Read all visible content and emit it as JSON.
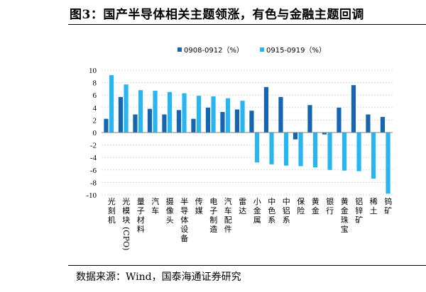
{
  "figure": {
    "title": "图3：国产半导体相关主题领涨，有色与金融主题回调",
    "source": "数据来源：Wind，国泰海通证券研究"
  },
  "chart_data": {
    "type": "bar",
    "title": "",
    "xlabel": "",
    "ylabel": "",
    "ylim": [
      -10,
      10
    ],
    "yticks": [
      -10,
      -8,
      -6,
      -4,
      -2,
      0,
      2,
      4,
      6,
      8,
      10
    ],
    "grid": true,
    "legend_position": "top",
    "categories": [
      "光刻机",
      "光模块(CPO)",
      "量子材料",
      "汽车",
      "摄像头",
      "半导体设备",
      "传媒",
      "电子制造",
      "汽车配件",
      "雷达",
      "小金属",
      "中色系",
      "中铝系",
      "保险",
      "黄金",
      "银行",
      "黄金珠宝",
      "铝锌矿",
      "稀土",
      "钨矿"
    ],
    "series": [
      {
        "name": "0908-0912（%）",
        "color": "#1565b0",
        "values": [
          2.2,
          5.7,
          2.9,
          3.8,
          2.9,
          3.6,
          2.2,
          4.0,
          3.3,
          3.7,
          3.5,
          7.3,
          5.7,
          -1.1,
          4.4,
          -0.3,
          4.0,
          7.6,
          2.9,
          2.5
        ]
      },
      {
        "name": "0915-0919（%）",
        "color": "#29b6f0",
        "values": [
          9.2,
          7.7,
          6.8,
          6.7,
          6.5,
          6.3,
          5.9,
          5.8,
          5.5,
          5.1,
          -4.8,
          -5.1,
          -5.3,
          -5.4,
          -5.6,
          -6.0,
          -6.1,
          -6.2,
          -7.4,
          -9.8
        ]
      }
    ]
  }
}
